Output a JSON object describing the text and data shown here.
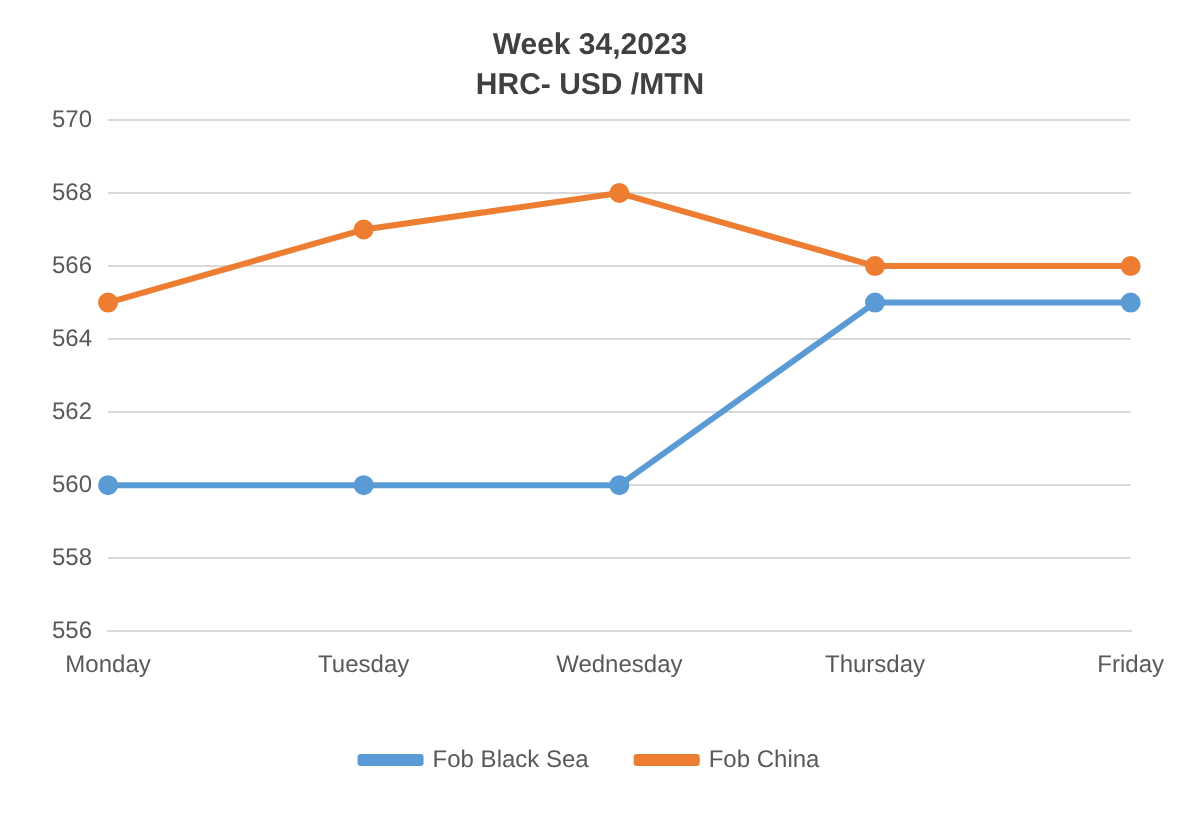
{
  "chart_data": {
    "type": "line",
    "title": "Week 34,2023",
    "subtitle": "HRC- USD /MTN",
    "categories": [
      "Monday",
      "Tuesday",
      "Wednesday",
      "Thursday",
      "Friday"
    ],
    "series": [
      {
        "name": "Fob Black Sea",
        "color": "#5b9bd5",
        "values": [
          560,
          560,
          560,
          565,
          565
        ]
      },
      {
        "name": "Fob China",
        "color": "#ed7d31",
        "values": [
          565,
          567,
          568,
          566,
          566
        ]
      }
    ],
    "ylim": [
      556,
      570
    ],
    "yticks": [
      556,
      558,
      560,
      562,
      564,
      566,
      568,
      570
    ],
    "grid": "y",
    "legend": "bottom",
    "marker": "circle",
    "line_style": "solid"
  }
}
